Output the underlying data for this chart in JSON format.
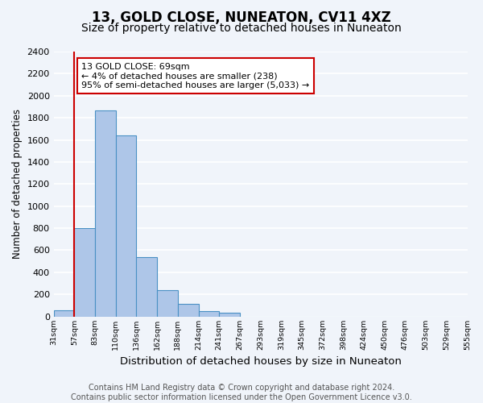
{
  "title": "13, GOLD CLOSE, NUNEATON, CV11 4XZ",
  "subtitle": "Size of property relative to detached houses in Nuneaton",
  "xlabel": "Distribution of detached houses by size in Nuneaton",
  "ylabel": "Number of detached properties",
  "bin_labels": [
    "31sqm",
    "57sqm",
    "83sqm",
    "110sqm",
    "136sqm",
    "162sqm",
    "188sqm",
    "214sqm",
    "241sqm",
    "267sqm",
    "293sqm",
    "319sqm",
    "345sqm",
    "372sqm",
    "398sqm",
    "424sqm",
    "450sqm",
    "476sqm",
    "503sqm",
    "529sqm",
    "555sqm"
  ],
  "bar_heights": [
    55,
    800,
    1870,
    1640,
    540,
    235,
    110,
    50,
    30,
    0,
    0,
    0,
    0,
    0,
    0,
    0,
    0,
    0,
    0,
    0
  ],
  "bar_color": "#aec6e8",
  "bar_edge_color": "#4a90c4",
  "vline_x": 1,
  "vline_color": "#cc0000",
  "annotation_line1": "13 GOLD CLOSE: 69sqm",
  "annotation_line2": "← 4% of detached houses are smaller (238)",
  "annotation_line3": "95% of semi-detached houses are larger (5,033) →",
  "annotation_box_color": "#ffffff",
  "annotation_box_edge": "#cc0000",
  "ylim": [
    0,
    2400
  ],
  "yticks": [
    0,
    200,
    400,
    600,
    800,
    1000,
    1200,
    1400,
    1600,
    1800,
    2000,
    2200,
    2400
  ],
  "footer_line1": "Contains HM Land Registry data © Crown copyright and database right 2024.",
  "footer_line2": "Contains public sector information licensed under the Open Government Licence v3.0.",
  "background_color": "#f0f4fa",
  "grid_color": "#ffffff",
  "title_fontsize": 12,
  "subtitle_fontsize": 10,
  "xlabel_fontsize": 9.5,
  "ylabel_fontsize": 8.5,
  "footer_fontsize": 7
}
